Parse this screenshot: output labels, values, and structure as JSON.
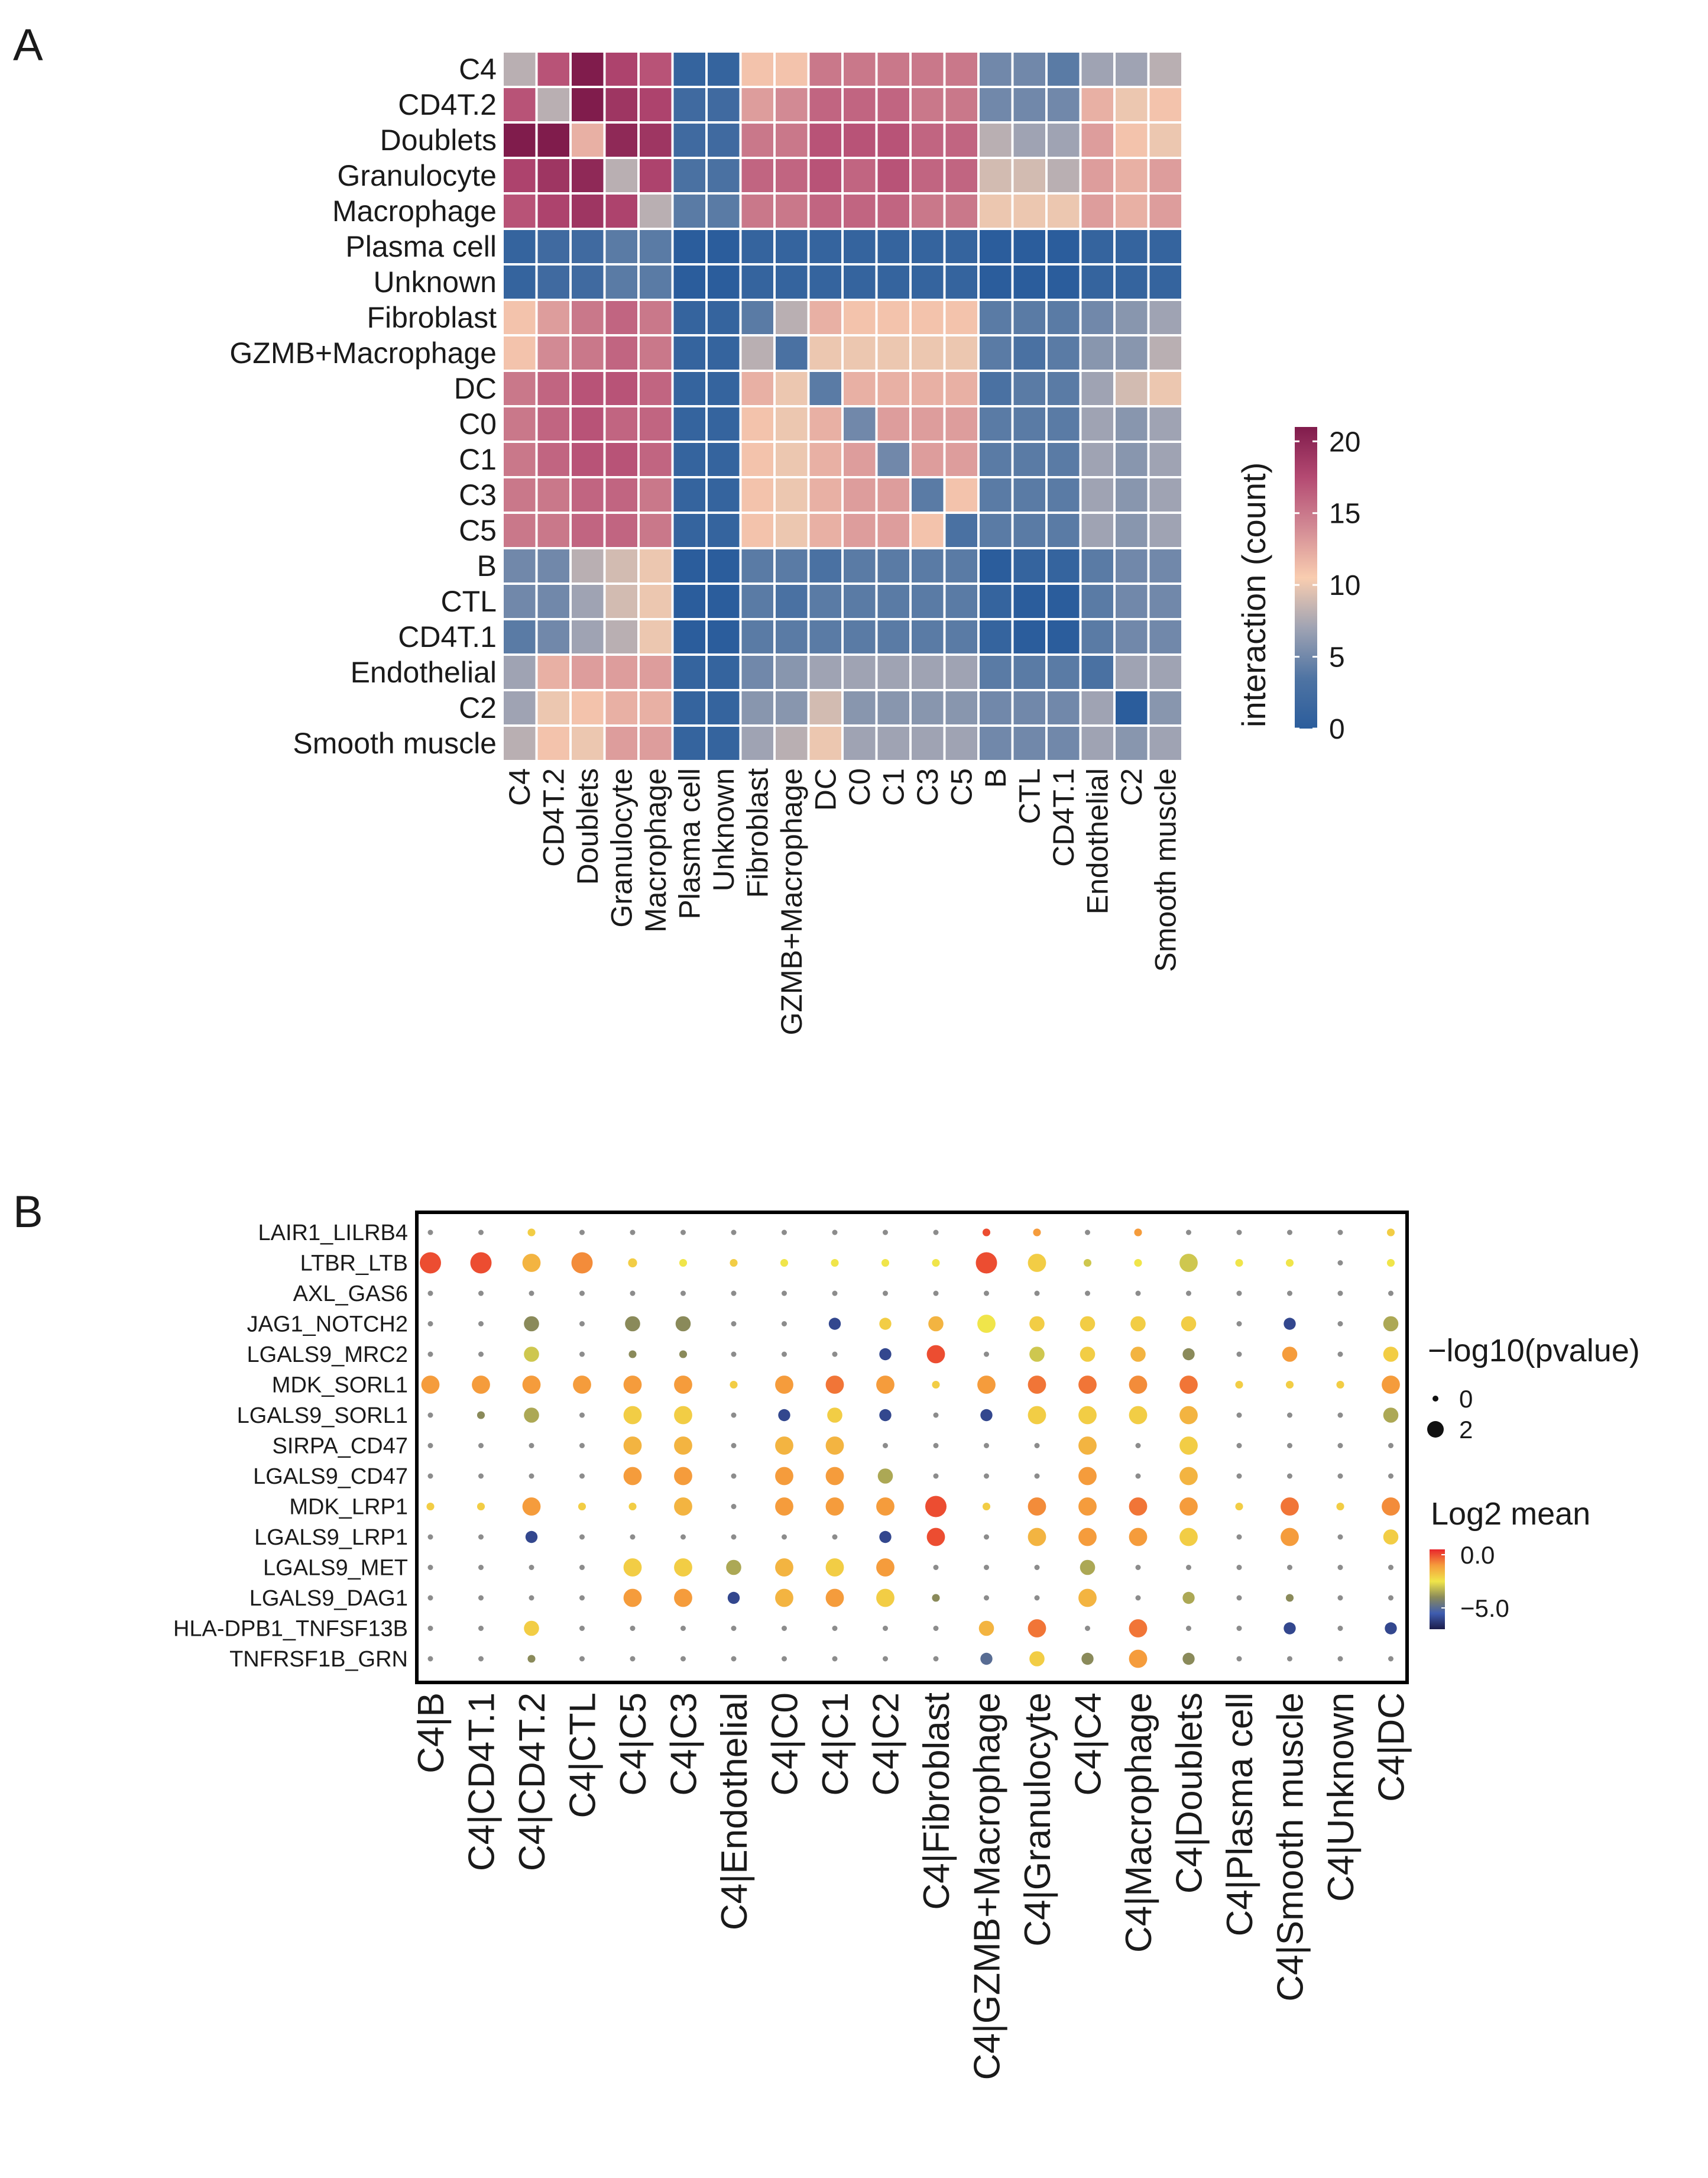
{
  "panels": {
    "a": "A",
    "b": "B"
  },
  "chart_data": [
    {
      "type": "heatmap",
      "panel": "A",
      "rows": [
        "C4",
        "CD4T.2",
        "Doublets",
        "Granulocyte",
        "Macrophage",
        "Plasma cell",
        "Unknown",
        "Fibroblast",
        "GZMB+Macrophage",
        "DC",
        "C0",
        "C1",
        "C3",
        "C5",
        "B",
        "CTL",
        "CD4T.1",
        "Endothelial",
        "C2",
        "Smooth muscle"
      ],
      "columns": [
        "C4",
        "CD4T.2",
        "Doublets",
        "Granulocyte",
        "Macrophage",
        "Plasma cell",
        "Unknown",
        "Fibroblast",
        "GZMB+Macrophage",
        "DC",
        "C0",
        "C1",
        "C3",
        "C5",
        "B",
        "CTL",
        "CD4T.1",
        "Endothelial",
        "C2",
        "Smooth muscle"
      ],
      "values": [
        [
          8,
          17,
          21,
          18,
          17,
          1,
          1,
          11,
          11,
          15,
          15,
          15,
          15,
          15,
          5,
          5,
          4,
          7,
          7,
          8
        ],
        [
          17,
          8,
          21,
          19,
          18,
          2,
          2,
          13,
          14,
          16,
          16,
          16,
          15,
          15,
          5,
          5,
          5,
          12,
          10,
          11
        ],
        [
          21,
          21,
          12,
          20,
          19,
          2,
          2,
          15,
          15,
          17,
          17,
          17,
          16,
          16,
          8,
          7,
          7,
          13,
          11,
          10
        ],
        [
          18,
          19,
          20,
          8,
          18,
          3,
          3,
          16,
          16,
          17,
          16,
          17,
          16,
          16,
          9,
          9,
          8,
          13,
          12,
          13
        ],
        [
          17,
          18,
          19,
          18,
          8,
          4,
          4,
          15,
          15,
          16,
          16,
          16,
          15,
          15,
          10,
          10,
          10,
          13,
          12,
          13
        ],
        [
          1,
          2,
          2,
          4,
          4,
          0,
          0,
          1,
          1,
          1,
          1,
          1,
          1,
          1,
          0,
          0,
          0,
          1,
          1,
          1
        ],
        [
          1,
          2,
          2,
          4,
          4,
          0,
          0,
          1,
          1,
          1,
          1,
          1,
          1,
          1,
          0,
          0,
          0,
          1,
          1,
          1
        ],
        [
          11,
          13,
          15,
          16,
          15,
          1,
          1,
          4,
          8,
          12,
          11,
          11,
          11,
          11,
          4,
          4,
          4,
          5,
          6,
          7
        ],
        [
          11,
          14,
          15,
          16,
          15,
          1,
          1,
          8,
          3,
          10,
          10,
          10,
          10,
          10,
          4,
          3,
          4,
          6,
          6,
          8
        ],
        [
          15,
          16,
          17,
          17,
          16,
          1,
          1,
          12,
          10,
          4,
          12,
          12,
          12,
          12,
          3,
          4,
          4,
          7,
          9,
          10
        ],
        [
          15,
          16,
          17,
          16,
          16,
          1,
          1,
          11,
          10,
          12,
          5,
          13,
          13,
          13,
          4,
          4,
          4,
          7,
          6,
          7
        ],
        [
          15,
          16,
          17,
          17,
          16,
          1,
          1,
          11,
          10,
          12,
          13,
          5,
          13,
          13,
          4,
          4,
          4,
          7,
          6,
          7
        ],
        [
          15,
          15,
          16,
          16,
          15,
          1,
          1,
          11,
          10,
          12,
          13,
          13,
          4,
          11,
          4,
          4,
          4,
          7,
          6,
          7
        ],
        [
          15,
          15,
          16,
          16,
          15,
          1,
          1,
          11,
          10,
          12,
          13,
          13,
          11,
          3,
          4,
          4,
          4,
          7,
          6,
          7
        ],
        [
          5,
          5,
          8,
          9,
          10,
          0,
          0,
          4,
          4,
          3,
          4,
          4,
          4,
          4,
          0,
          1,
          1,
          4,
          5,
          5
        ],
        [
          5,
          5,
          7,
          9,
          10,
          0,
          0,
          4,
          3,
          4,
          4,
          4,
          4,
          4,
          1,
          0,
          0,
          4,
          5,
          5
        ],
        [
          4,
          5,
          7,
          8,
          10,
          0,
          0,
          4,
          4,
          4,
          4,
          4,
          4,
          4,
          1,
          0,
          0,
          4,
          5,
          5
        ],
        [
          7,
          12,
          13,
          13,
          13,
          1,
          1,
          5,
          6,
          7,
          7,
          7,
          7,
          7,
          4,
          4,
          4,
          3,
          7,
          7
        ],
        [
          7,
          10,
          11,
          12,
          12,
          1,
          1,
          6,
          6,
          9,
          6,
          6,
          6,
          6,
          5,
          5,
          5,
          7,
          0,
          6
        ],
        [
          8,
          11,
          10,
          13,
          13,
          1,
          1,
          7,
          8,
          10,
          7,
          7,
          7,
          7,
          5,
          5,
          5,
          7,
          6,
          7
        ]
      ],
      "legend": {
        "title": "interaction (count)",
        "ticks": [
          0,
          5,
          10,
          15,
          20
        ],
        "range": [
          0,
          21
        ]
      },
      "colors": [
        "#2b5d9c",
        "#4f74a3",
        "#9fa3b3",
        "#f9cdb0",
        "#d28a94",
        "#b44a72",
        "#801c4c"
      ]
    },
    {
      "type": "dotplot",
      "panel": "B",
      "rows": [
        "LAIR1_LILRB4",
        "LTBR_LTB",
        "AXL_GAS6",
        "JAG1_NOTCH2",
        "LGALS9_MRC2",
        "MDK_SORL1",
        "LGALS9_SORL1",
        "SIRPA_CD47",
        "LGALS9_CD47",
        "MDK_LRP1",
        "LGALS9_LRP1",
        "LGALS9_MET",
        "LGALS9_DAG1",
        "HLA-DPB1_TNFSF13B",
        "TNFRSF1B_GRN"
      ],
      "columns": [
        "C4|B",
        "C4|CD4T.1",
        "C4|CD4T.2",
        "C4|CTL",
        "C4|C5",
        "C4|C3",
        "C4|Endothelial",
        "C4|C0",
        "C4|C1",
        "C4|C2",
        "C4|Fibroblast",
        "C4|GZMB+Macrophage",
        "C4|Granulocyte",
        "C4|C4",
        "C4|Macrophage",
        "C4|Doublets",
        "C4|Plasma cell",
        "C4|Smooth muscle",
        "C4|Unknown",
        "C4|DC"
      ],
      "neglog10p": [
        [
          0,
          0,
          0.3,
          0,
          0,
          0,
          0,
          0,
          0,
          0,
          0,
          0.3,
          0.3,
          0,
          0.3,
          0,
          0,
          0,
          0,
          0.3
        ],
        [
          2.5,
          2.5,
          2,
          2.5,
          0.5,
          0.3,
          0.3,
          0.3,
          0.3,
          0.3,
          0.3,
          2.5,
          2,
          0.3,
          0.3,
          2,
          0.3,
          0.3,
          0,
          0.3
        ],
        [
          0,
          0,
          0,
          0,
          0,
          0,
          0,
          0,
          0,
          0,
          0,
          0,
          0,
          0,
          0,
          0,
          0,
          0,
          0,
          0
        ],
        [
          0,
          0,
          1.5,
          0,
          1.5,
          1.5,
          0,
          0,
          1,
          1,
          1.5,
          2,
          1.5,
          1.5,
          1.5,
          1.5,
          0,
          1,
          0,
          1.5
        ],
        [
          0,
          0,
          1.5,
          0,
          0.3,
          0.3,
          0,
          0,
          0,
          1,
          2,
          0,
          1.5,
          1.5,
          1.5,
          1,
          0,
          1.5,
          0,
          1.5
        ],
        [
          2,
          2,
          2,
          2,
          2,
          2,
          0.3,
          2,
          2,
          2,
          0.3,
          2,
          2,
          2,
          2,
          2,
          0.3,
          0.3,
          0.3,
          2
        ],
        [
          0,
          0.3,
          1.5,
          0,
          2,
          2,
          0,
          1,
          1.5,
          1,
          0,
          1,
          2,
          2,
          2,
          2,
          0,
          0,
          0,
          1.5
        ],
        [
          0,
          0,
          0,
          0,
          2,
          2,
          0,
          2,
          2,
          0,
          0,
          0,
          0,
          2,
          0,
          2,
          0,
          0,
          0,
          0
        ],
        [
          0,
          0,
          0,
          0,
          2,
          2,
          0,
          2,
          2,
          1.5,
          0,
          0,
          0,
          2,
          0,
          2,
          0,
          0,
          0,
          0
        ],
        [
          0.3,
          0.3,
          2,
          0.3,
          0.3,
          2,
          0,
          2,
          2,
          2,
          2.5,
          0.3,
          2,
          2,
          2,
          2,
          0.3,
          2,
          0.3,
          2
        ],
        [
          0,
          0,
          1,
          0,
          0,
          0,
          0,
          0,
          0,
          1,
          2,
          0,
          2,
          2,
          2,
          2,
          0,
          2,
          0,
          1.5
        ],
        [
          0,
          0,
          0,
          0,
          2,
          2,
          1.5,
          2,
          2,
          2,
          0,
          0,
          0,
          1.5,
          0,
          0,
          0,
          0,
          0,
          0
        ],
        [
          0,
          0,
          0,
          0,
          2,
          2,
          1,
          2,
          2,
          2,
          0.3,
          0,
          0,
          2,
          0,
          1,
          0,
          0.3,
          0,
          0
        ],
        [
          0,
          0,
          1.5,
          0,
          0,
          0,
          0,
          0,
          0,
          0,
          0,
          1.5,
          2,
          0,
          2,
          0,
          0,
          1,
          0,
          1
        ],
        [
          0,
          0,
          0.3,
          0,
          0,
          0,
          0,
          0,
          0,
          0,
          0,
          1,
          1.5,
          1,
          2,
          1,
          0,
          0,
          0,
          0
        ]
      ],
      "log2mean": [
        [
          -4,
          -4,
          -2,
          -4,
          -4,
          -4,
          -4,
          -4,
          -4,
          -4,
          -4,
          0,
          -1,
          -4,
          -1,
          -4,
          -4,
          -4,
          -4,
          -2
        ],
        [
          0,
          0,
          -1.5,
          -0.8,
          -2,
          -2.5,
          -2,
          -2.5,
          -2.5,
          -2.5,
          -2.5,
          0,
          -2,
          -3,
          -2.5,
          -3,
          -2.5,
          -2.5,
          -4,
          -2.5
        ],
        [
          -4,
          -4,
          -4,
          -4,
          -4,
          -4,
          -4,
          -4,
          -4,
          -4,
          -4,
          -4,
          -4,
          -4,
          -4,
          -4,
          -4,
          -4,
          -4,
          -4
        ],
        [
          -4,
          -4,
          -4,
          -4,
          -4,
          -4,
          -4,
          -6,
          -6,
          -2,
          -1.5,
          -2.5,
          -2,
          -2,
          -2,
          -2,
          -4,
          -6,
          -4,
          -3.5
        ],
        [
          -4,
          -4,
          -3,
          -4,
          -4,
          -4,
          -4,
          -4,
          -4,
          -6,
          0,
          -4,
          -3,
          -2,
          -1.5,
          -4,
          -4,
          -1,
          -4,
          -2
        ],
        [
          -1,
          -1,
          -1,
          -1,
          -1,
          -1,
          -2,
          -1,
          -0.5,
          -1,
          -2,
          -1,
          -0.5,
          -0.5,
          -0.8,
          -0.5,
          -2,
          -2,
          -2,
          -1
        ],
        [
          -4,
          -4,
          -3.5,
          -4,
          -2,
          -2,
          -4,
          -6,
          -2,
          -6,
          -4,
          -6,
          -2,
          -2,
          -2,
          -1.5,
          -4,
          -4,
          -4,
          -3.5
        ],
        [
          -4,
          -4,
          -4,
          -4,
          -1.5,
          -1.5,
          -4,
          -1.5,
          -1.5,
          -4,
          -4,
          -4,
          -4,
          -1.5,
          -4,
          -2,
          -4,
          -4,
          -4,
          -4
        ],
        [
          -4,
          -4,
          -4,
          -4,
          -1,
          -1,
          -4,
          -1,
          -1,
          -3.5,
          -4,
          -4,
          -4,
          -1,
          -4,
          -1.5,
          -4,
          -4,
          -4,
          -4
        ],
        [
          -2,
          -2,
          -1,
          -2,
          -2,
          -1.5,
          -4,
          -1,
          -1,
          -1,
          0,
          -2,
          -0.8,
          -1,
          -0.5,
          -1,
          -2,
          -0.5,
          -2,
          -0.8
        ],
        [
          -4,
          -4,
          -6,
          -4,
          -4,
          -4,
          -4,
          -4,
          -4,
          -6,
          0,
          -4,
          -1.5,
          -1,
          -1,
          -2,
          -4,
          -1,
          -4,
          -2
        ],
        [
          -4,
          -4,
          -4,
          -4,
          -2,
          -2,
          -3.5,
          -1.5,
          -2,
          -1,
          -4,
          -4,
          -4,
          -3.5,
          -4,
          -4,
          -4,
          -4,
          -4,
          -4
        ],
        [
          -4,
          -4,
          -4,
          -4,
          -1,
          -1,
          -6,
          -1.5,
          -1,
          -2,
          -4,
          -4,
          -4,
          -1.5,
          -4,
          -3.5,
          -4,
          -4,
          -4,
          -4
        ],
        [
          -4,
          -4,
          -2,
          -4,
          -4,
          -4,
          -4,
          -4,
          -4,
          -4,
          -4,
          -1.5,
          -0.5,
          -4,
          -0.5,
          -4,
          -4,
          -6,
          -4,
          -6
        ],
        [
          -4,
          -4,
          -4,
          -4,
          -4,
          -4,
          -4,
          -4,
          -4,
          -4,
          -4,
          -5,
          -2,
          -4,
          -1,
          -4,
          -4,
          -4,
          -4,
          -4
        ]
      ],
      "size_legend": {
        "title": "−log10(pvalue)",
        "ticks": [
          0,
          2
        ]
      },
      "color_legend": {
        "title": "Log2 mean",
        "ticks": [
          0.0,
          -5.0
        ],
        "tick_labels": [
          "0.0",
          "−5.0"
        ],
        "range": [
          -7,
          0.5
        ]
      },
      "colors": [
        "#e8262c",
        "#f59c3c",
        "#f0e54a",
        "#8a8a5a",
        "#3f5db0",
        "#1c1c4a"
      ]
    }
  ]
}
